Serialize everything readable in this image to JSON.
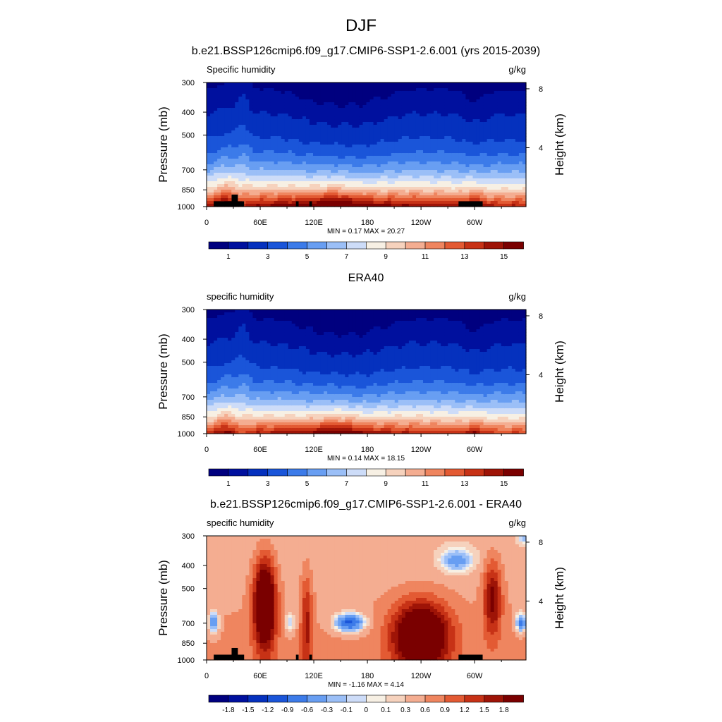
{
  "figure": {
    "title": "DJF"
  },
  "chart_data": [
    {
      "type": "heatmap",
      "title": "b.e21.BSSP126cmip6.f09_g17.CMIP6-SSP1-2.6.001 (yrs 2015-2039)",
      "left_label": "Specific humidity",
      "right_label": "g/kg",
      "ylabel": "Pressure (mb)",
      "y2label": "Height (km)",
      "x_ticks": [
        "0",
        "60E",
        "120E",
        "180",
        "120W",
        "60W"
      ],
      "x_tick_values": [
        0,
        60,
        120,
        180,
        240,
        300
      ],
      "xlim": [
        0,
        357.5
      ],
      "y_ticks": [
        "300",
        "400",
        "500",
        "700",
        "850",
        "1000"
      ],
      "y_tick_values": [
        300,
        400,
        500,
        700,
        850,
        1000
      ],
      "ylim": [
        300,
        1000
      ],
      "y_log": true,
      "height_ticks": [
        "8",
        "4"
      ],
      "height_tick_values": [
        8,
        4
      ],
      "stats": "MIN =   0.17  MAX =  20.27",
      "field": "moist",
      "scale": 1.0,
      "terrain": true,
      "colorbar_labels": [
        "1",
        "3",
        "5",
        "7",
        "9",
        "11",
        "13",
        "15"
      ],
      "levels": [
        0.5,
        1,
        2,
        3,
        4,
        5,
        6,
        7,
        8,
        9,
        10,
        11,
        12,
        13,
        14,
        15
      ],
      "colors": [
        "#00007f",
        "#00109e",
        "#0531be",
        "#1a55d9",
        "#3c7be9",
        "#689ef2",
        "#9bbff7",
        "#cddcf8",
        "#f7f0e4",
        "#f6d2bd",
        "#f4ad91",
        "#ef855f",
        "#e35a33",
        "#c73216",
        "#9e1407",
        "#7a0000"
      ]
    },
    {
      "type": "heatmap",
      "title": "ERA40",
      "left_label": "specific humidity",
      "right_label": "g/kg",
      "ylabel": "Pressure (mb)",
      "y2label": "Height (km)",
      "x_ticks": [
        "0",
        "60E",
        "120E",
        "180",
        "120W",
        "60W"
      ],
      "x_tick_values": [
        0,
        60,
        120,
        180,
        240,
        300
      ],
      "xlim": [
        0,
        357.5
      ],
      "y_ticks": [
        "300",
        "400",
        "500",
        "700",
        "850",
        "1000"
      ],
      "y_tick_values": [
        300,
        400,
        500,
        700,
        850,
        1000
      ],
      "ylim": [
        300,
        1000
      ],
      "y_log": true,
      "height_ticks": [
        "8",
        "4"
      ],
      "height_tick_values": [
        8,
        4
      ],
      "stats": "MIN =   0.14  MAX =  18.15",
      "field": "moist",
      "scale": 0.92,
      "terrain": false,
      "colorbar_labels": [
        "1",
        "3",
        "5",
        "7",
        "9",
        "11",
        "13",
        "15"
      ],
      "levels": [
        0.5,
        1,
        2,
        3,
        4,
        5,
        6,
        7,
        8,
        9,
        10,
        11,
        12,
        13,
        14,
        15
      ],
      "colors": [
        "#00007f",
        "#00109e",
        "#0531be",
        "#1a55d9",
        "#3c7be9",
        "#689ef2",
        "#9bbff7",
        "#cddcf8",
        "#f7f0e4",
        "#f6d2bd",
        "#f4ad91",
        "#ef855f",
        "#e35a33",
        "#c73216",
        "#9e1407",
        "#7a0000"
      ]
    },
    {
      "type": "heatmap",
      "title": "b.e21.BSSP126cmip6.f09_g17.CMIP6-SSP1-2.6.001 - ERA40",
      "left_label": "specific humidity",
      "right_label": "g/kg",
      "ylabel": "Pressure (mb)",
      "y2label": "Height (km)",
      "x_ticks": [
        "0",
        "60E",
        "120E",
        "180",
        "120W",
        "60W"
      ],
      "x_tick_values": [
        0,
        60,
        120,
        180,
        240,
        300
      ],
      "xlim": [
        0,
        357.5
      ],
      "y_ticks": [
        "300",
        "400",
        "500",
        "700",
        "850",
        "1000"
      ],
      "y_tick_values": [
        300,
        400,
        500,
        700,
        850,
        1000
      ],
      "ylim": [
        300,
        1000
      ],
      "y_log": true,
      "height_ticks": [
        "8",
        "4"
      ],
      "height_tick_values": [
        8,
        4
      ],
      "stats": "MIN =  -1.16  MAX =   4.14",
      "field": "diff",
      "scale": 1.0,
      "terrain": true,
      "colorbar_labels": [
        "-1.8",
        "-1.5",
        "-1.2",
        "-0.9",
        "-0.6",
        "-0.3",
        "-0.1",
        "0",
        "0.1",
        "0.3",
        "0.6",
        "0.9",
        "1.2",
        "1.5",
        "1.8"
      ],
      "levels": [
        -1.8,
        -1.5,
        -1.2,
        -0.9,
        -0.6,
        -0.3,
        -0.1,
        0,
        0.1,
        0.3,
        0.6,
        0.9,
        1.2,
        1.5,
        1.8
      ],
      "colors": [
        "#00007f",
        "#00109e",
        "#0531be",
        "#1a55d9",
        "#3c7be9",
        "#689ef2",
        "#9bbff7",
        "#cddcf8",
        "#f7f0e4",
        "#f6d2bd",
        "#f4ad91",
        "#ef855f",
        "#e35a33",
        "#c73216",
        "#9e1407",
        "#7a0000"
      ]
    }
  ]
}
